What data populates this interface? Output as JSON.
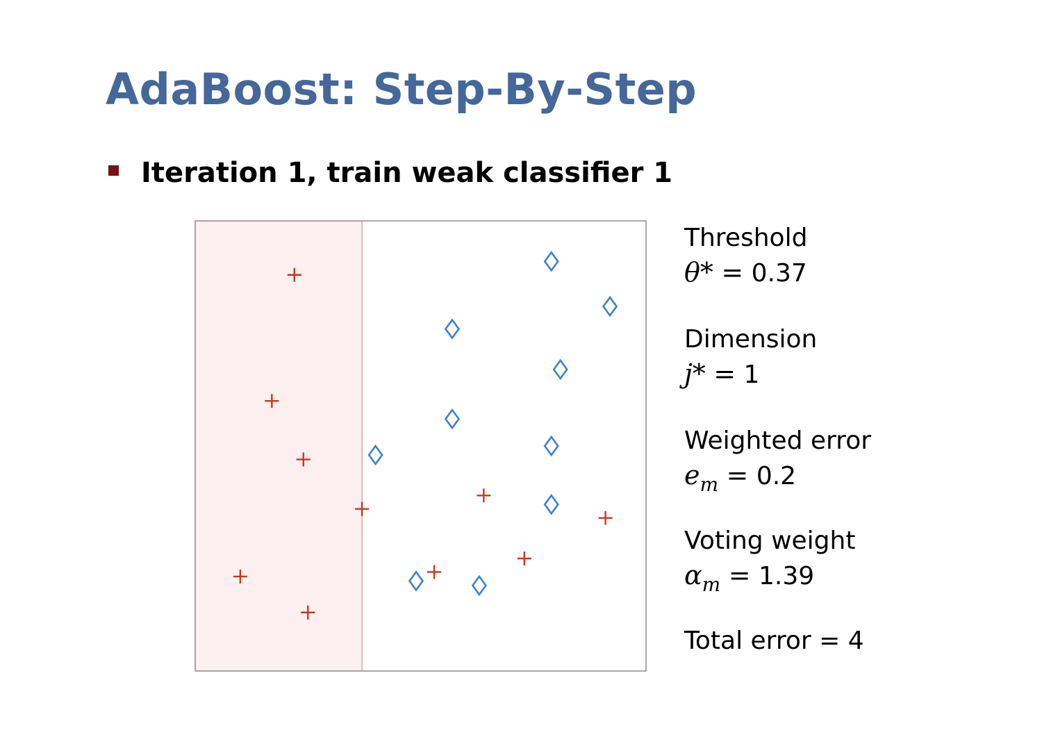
{
  "title": "AdaBoost: Step-By-Step",
  "bullet": "Iteration 1, train weak classifier 1",
  "info": {
    "threshold_label": "Threshold",
    "threshold_symbol": "θ*",
    "threshold_eq": "=",
    "threshold_value": "0.37",
    "dimension_label": "Dimension",
    "dimension_symbol": "j*",
    "dimension_eq": "=",
    "dimension_value": "1",
    "error_label": "Weighted error",
    "error_symbol": "e",
    "error_sub": "m",
    "error_eq": "=",
    "error_value": "0.2",
    "vote_label": "Voting weight",
    "vote_symbol": "α",
    "vote_sub": "m",
    "vote_eq": "=",
    "vote_value": "1.39",
    "total_error_text": "Total error = 4"
  },
  "colors": {
    "title": "#45679a",
    "positive": "#c8361c",
    "negative": "#3f7fcf",
    "region_fill": "#fbefef",
    "region_edge": "#d9a7a7",
    "bullet": "#7a1212"
  },
  "chart_data": {
    "type": "scatter",
    "xlim": [
      0,
      1
    ],
    "ylim": [
      0,
      1
    ],
    "threshold": 0.37,
    "shaded_side": "left",
    "series": [
      {
        "marker": "plus",
        "x": [
          0.22,
          0.17,
          0.24,
          0.37,
          0.1,
          0.25,
          0.64,
          0.53,
          0.73,
          0.91
        ],
        "y": [
          0.88,
          0.6,
          0.47,
          0.36,
          0.21,
          0.13,
          0.39,
          0.22,
          0.25,
          0.34
        ]
      },
      {
        "marker": "diamond",
        "x": [
          0.79,
          0.92,
          0.57,
          0.81,
          0.57,
          0.79,
          0.4,
          0.79,
          0.49,
          0.63
        ],
        "y": [
          0.91,
          0.81,
          0.76,
          0.67,
          0.56,
          0.5,
          0.48,
          0.37,
          0.2,
          0.19
        ]
      }
    ]
  }
}
